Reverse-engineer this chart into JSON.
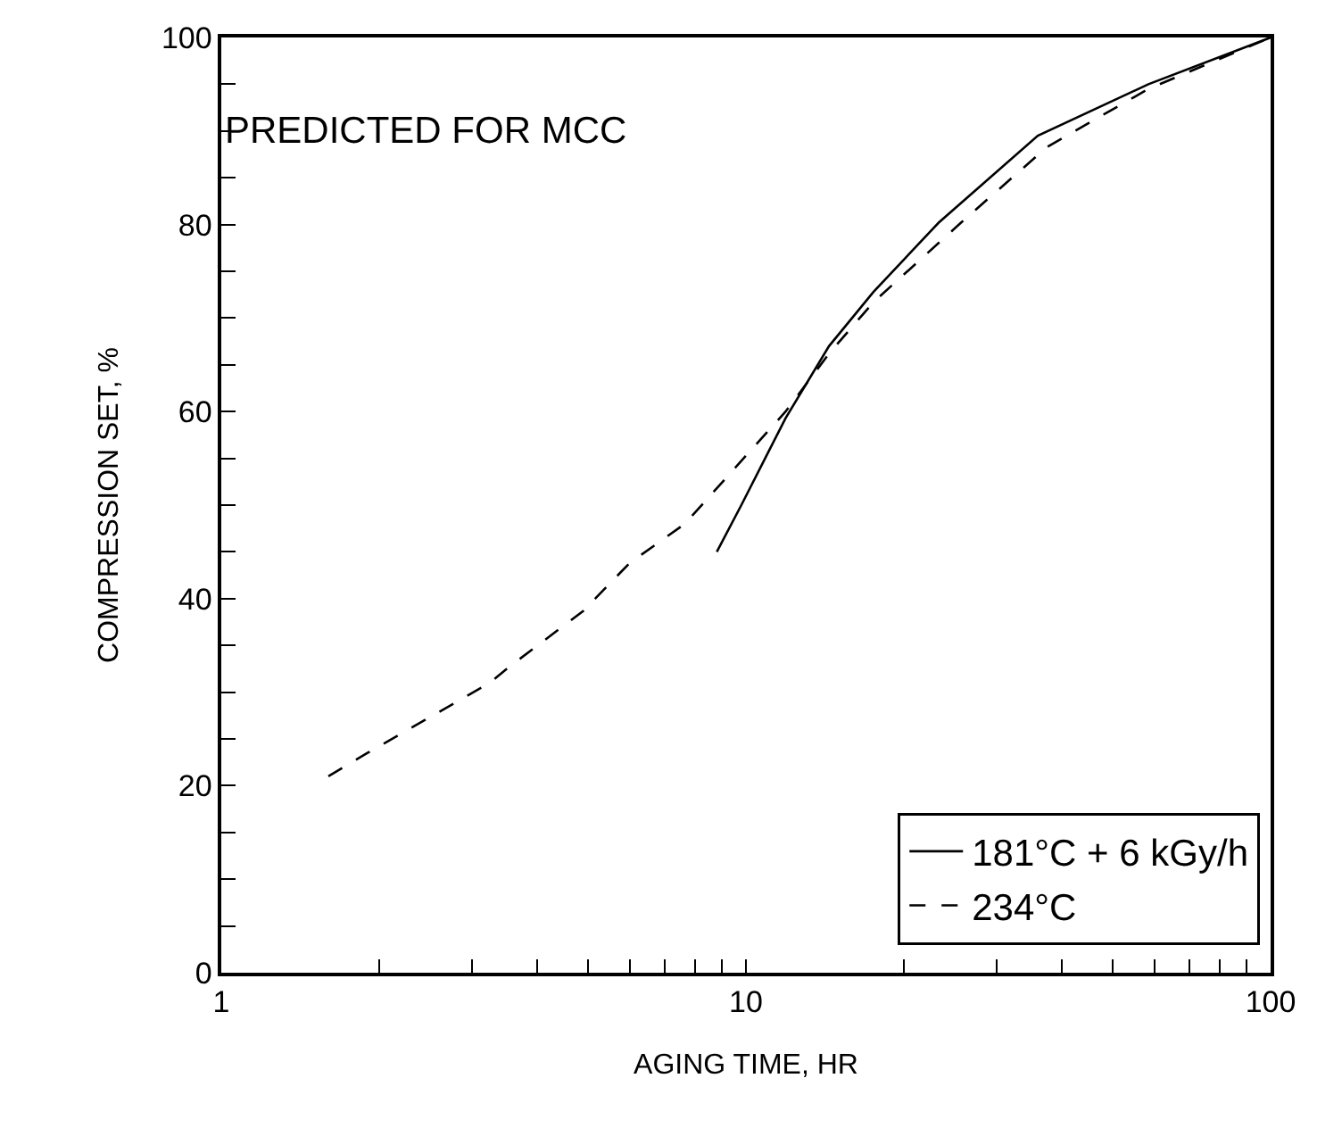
{
  "chart_data": {
    "type": "line",
    "xlabel": "AGING TIME, HR",
    "ylabel": "COMPRESSION SET, %",
    "annotations": [
      "PREDICTED FOR MCC"
    ],
    "log": "x",
    "xlim": [
      1,
      100
    ],
    "ylim": [
      0,
      100
    ],
    "xticks": [
      1,
      {
        "value": 2,
        "label": null
      },
      {
        "value": 3,
        "label": null
      },
      {
        "value": 4,
        "label": null
      },
      {
        "value": 5,
        "label": null
      },
      {
        "value": 6,
        "label": null
      },
      {
        "value": 7,
        "label": null
      },
      {
        "value": 8,
        "label": null
      },
      {
        "value": 9,
        "label": null
      },
      10,
      {
        "value": 20,
        "label": null
      },
      {
        "value": 30,
        "label": null
      },
      {
        "value": 40,
        "label": null
      },
      {
        "value": 50,
        "label": null
      },
      {
        "value": 60,
        "label": null
      },
      {
        "value": 70,
        "label": null
      },
      {
        "value": 80,
        "label": null
      },
      {
        "value": 90,
        "label": null
      },
      100
    ],
    "yticks": [
      0,
      {
        "value": 5,
        "label": null
      },
      {
        "value": 10,
        "label": null
      },
      {
        "value": 15,
        "label": null
      },
      20,
      {
        "value": 25,
        "label": null
      },
      {
        "value": 30,
        "label": null
      },
      {
        "value": 35,
        "label": null
      },
      40,
      {
        "value": 45,
        "label": null
      },
      {
        "value": 50,
        "label": null
      },
      {
        "value": 55,
        "label": null
      },
      60,
      {
        "value": 65,
        "label": null
      },
      {
        "value": 70,
        "label": null
      },
      {
        "value": 75,
        "label": null
      },
      80,
      {
        "value": 85,
        "label": null
      },
      {
        "value": 90,
        "label": null
      },
      {
        "value": 95,
        "label": null
      },
      100
    ],
    "grid": false,
    "legend": "bottom right",
    "marker": "none",
    "series": [
      {
        "name": "181°C + 6 kGy/h",
        "color": "#000000",
        "line_style": "solid",
        "x": [
          8.8,
          9.8,
          11.9,
          14.4,
          17.5,
          23.3,
          36,
          58.5,
          100
        ],
        "values": [
          45,
          50,
          59.3,
          67,
          72.8,
          80.2,
          89.5,
          95,
          100
        ]
      },
      {
        "name": "234°C",
        "color": "#000000",
        "line_style": "dashed",
        "x": [
          1.6,
          1.9,
          3.25,
          3.5,
          4.9,
          6,
          7.65,
          11.9,
          14.4,
          17.5,
          25.7,
          37.5,
          58.5,
          100
        ],
        "values": [
          21,
          23.5,
          31,
          32.5,
          38.7,
          43.8,
          48,
          60,
          66.2,
          71.7,
          80.2,
          88.3,
          94.5,
          100
        ]
      }
    ]
  }
}
